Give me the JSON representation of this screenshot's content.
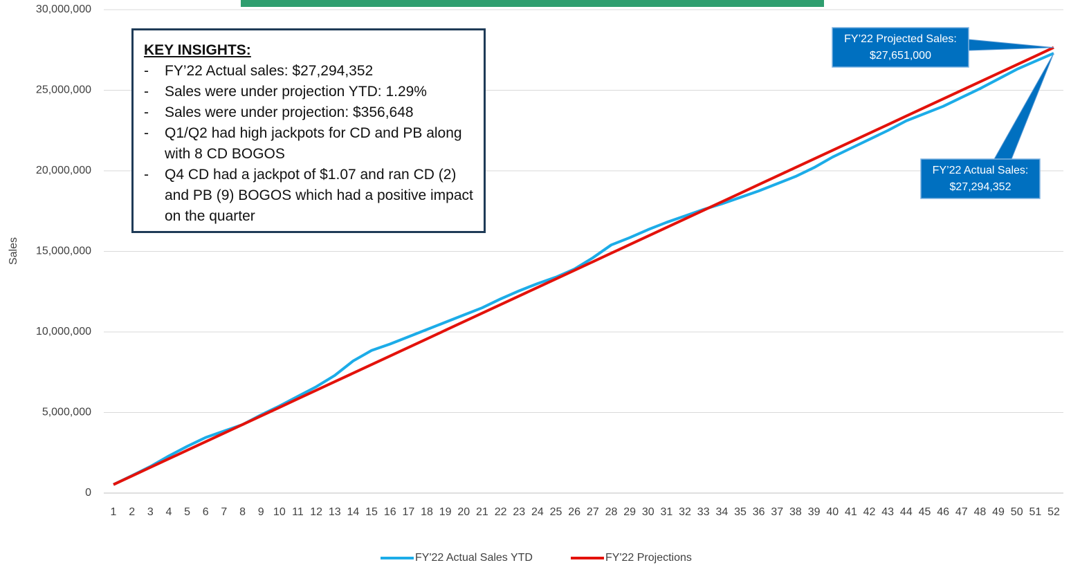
{
  "chart_data": {
    "type": "line",
    "y_label": "Sales",
    "categories": [
      1,
      2,
      3,
      4,
      5,
      6,
      7,
      8,
      9,
      10,
      11,
      12,
      13,
      14,
      15,
      16,
      17,
      18,
      19,
      20,
      21,
      22,
      23,
      24,
      25,
      26,
      27,
      28,
      29,
      30,
      31,
      32,
      33,
      34,
      35,
      36,
      37,
      38,
      39,
      40,
      41,
      42,
      43,
      44,
      45,
      46,
      47,
      48,
      49,
      50,
      51,
      52
    ],
    "series": [
      {
        "name": "FY'22 Actual Sales YTD",
        "color": "#1cacE8",
        "values": [
          530000,
          1080000,
          1650000,
          2300000,
          2900000,
          3450000,
          3850000,
          4250000,
          4850000,
          5400000,
          6000000,
          6600000,
          7300000,
          8200000,
          8850000,
          9250000,
          9700000,
          10150000,
          10600000,
          11050000,
          11500000,
          12050000,
          12550000,
          13000000,
          13400000,
          13900000,
          14600000,
          15400000,
          15850000,
          16350000,
          16800000,
          17200000,
          17600000,
          17950000,
          18350000,
          18750000,
          19200000,
          19650000,
          20200000,
          20850000,
          21400000,
          21950000,
          22500000,
          23100000,
          23550000,
          24000000,
          24550000,
          25100000,
          25700000,
          26300000,
          26800000,
          27294352
        ]
      },
      {
        "name": "FY'22 Projections",
        "color": "#e3120b",
        "values": [
          530000,
          1062000,
          1594000,
          2125000,
          2657000,
          3189000,
          3721000,
          4252000,
          4784000,
          5316000,
          5848000,
          6380000,
          6911000,
          7443000,
          7975000,
          8507000,
          9038000,
          9570000,
          10102000,
          10634000,
          11165000,
          11697000,
          12229000,
          12761000,
          13292000,
          13824000,
          14356000,
          14888000,
          15420000,
          15951000,
          16483000,
          17015000,
          17547000,
          18078000,
          18610000,
          19142000,
          19674000,
          20205000,
          20737000,
          21269000,
          21801000,
          22332000,
          22864000,
          23396000,
          23928000,
          24460000,
          24991000,
          25523000,
          26055000,
          26587000,
          27119000,
          27651000
        ]
      }
    ],
    "ylim": [
      0,
      30000000
    ],
    "yticks": [
      0,
      {
        "value": 5000000,
        "label": "5,000,000"
      },
      {
        "value": 10000000,
        "label": "10,000,000"
      },
      {
        "value": 15000000,
        "label": "15,000,000"
      },
      {
        "value": 20000000,
        "label": "20,000,000"
      },
      {
        "value": 25000000,
        "label": "25,000,000"
      },
      {
        "value": 30000000,
        "label": "30,000,000"
      }
    ],
    "grid": true,
    "legend": "bottom",
    "annotations": [
      {
        "lines": [
          "FY’22 Projected Sales:",
          "$27,651,000"
        ]
      },
      {
        "lines": [
          "FY’22 Actual Sales:",
          "$27,294,352"
        ]
      }
    ],
    "insights": {
      "heading": "KEY INSIGHTS:",
      "items": [
        "FY’22 Actual sales: $27,294,352",
        "Sales were under projection YTD: 1.29%",
        "Sales were under projection: $356,648",
        "Q1/Q2 had high jackpots for CD and PB along with 8 CD BOGOS",
        "Q4 CD had a jackpot of $1.07 and ran CD (2) and PB (9) BOGOS which had a positive impact on the quarter"
      ]
    }
  }
}
